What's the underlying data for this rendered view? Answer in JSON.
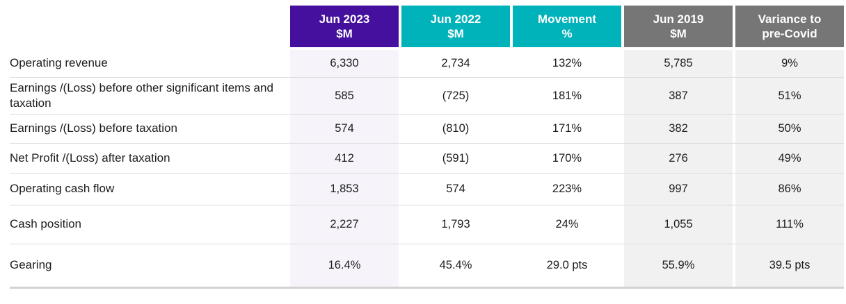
{
  "colors": {
    "header_purple": "#45109d",
    "header_teal": "#00b2ba",
    "header_gray": "#767676",
    "column_purple_tint": "#f6f4fa",
    "column_gray_tint": "#f2f1f2",
    "row_divider": "#dcdcdc",
    "bottom_border": "#d2d2d2",
    "header_text": "#ffffff",
    "body_text": "#1c1c1c"
  },
  "chart_data": {
    "type": "table",
    "title": "Financial results summary",
    "columns": [
      "Jun 2023 $M",
      "Jun 2022 $M",
      "Movement %",
      "Jun 2019 $M",
      "Variance to pre-Covid"
    ],
    "rows": [
      {
        "label": "Operating revenue",
        "values": [
          "6,330",
          "2,734",
          "132%",
          "5,785",
          "9%"
        ]
      },
      {
        "label": "Earnings /(Loss) before other significant items and taxation",
        "values": [
          "585",
          "(725)",
          "181%",
          "387",
          "51%"
        ]
      },
      {
        "label": "Earnings /(Loss) before taxation",
        "values": [
          "574",
          "(810)",
          "171%",
          "382",
          "50%"
        ]
      },
      {
        "label": "Net Profit /(Loss) after taxation",
        "values": [
          "412",
          "(591)",
          "170%",
          "276",
          "49%"
        ]
      },
      {
        "label": "Operating cash flow",
        "values": [
          "1,853",
          "574",
          "223%",
          "997",
          "86%"
        ]
      },
      {
        "label": "Cash position",
        "values": [
          "2,227",
          "1,793",
          "24%",
          "1,055",
          "111%"
        ]
      },
      {
        "label": "Gearing",
        "values": [
          "16.4%",
          "45.4%",
          "29.0 pts",
          "55.9%",
          "39.5 pts"
        ]
      }
    ]
  },
  "table": {
    "headers": [
      {
        "line1": "Jun 2023",
        "line2": "$M"
      },
      {
        "line1": "Jun 2022",
        "line2": "$M"
      },
      {
        "line1": "Movement",
        "line2": "%"
      },
      {
        "line1": "Jun 2019",
        "line2": "$M"
      },
      {
        "line1": "Variance to",
        "line2": "pre-Covid"
      }
    ],
    "rows": [
      {
        "label": "Operating revenue",
        "values": [
          "6,330",
          "2,734",
          "132%",
          "5,785",
          "9%"
        ]
      },
      {
        "label": "Earnings /(Loss) before other significant items and taxation",
        "values": [
          "585",
          "(725)",
          "181%",
          "387",
          "51%"
        ]
      },
      {
        "label": "Earnings /(Loss) before taxation",
        "values": [
          "574",
          "(810)",
          "171%",
          "382",
          "50%"
        ]
      },
      {
        "label": "Net Profit /(Loss) after taxation",
        "values": [
          "412",
          "(591)",
          "170%",
          "276",
          "49%"
        ]
      },
      {
        "label": "Operating cash flow",
        "values": [
          "1,853",
          "574",
          "223%",
          "997",
          "86%"
        ]
      },
      {
        "label": "Cash position",
        "values": [
          "2,227",
          "1,793",
          "24%",
          "1,055",
          "111%"
        ]
      },
      {
        "label": "Gearing",
        "values": [
          "16.4%",
          "45.4%",
          "29.0 pts",
          "55.9%",
          "39.5 pts"
        ]
      }
    ]
  }
}
